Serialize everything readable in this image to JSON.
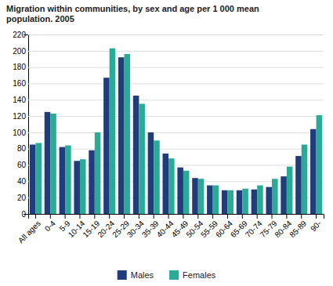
{
  "chart_data": {
    "type": "bar",
    "title": "Migration within communities, by sex and age per 1 000 mean\npopulation. 2005",
    "categories": [
      "All ages",
      "0-4",
      "5-9",
      "10-14",
      "15-19",
      "20-24",
      "25-29",
      "30-34",
      "35-39",
      "40-44",
      "45-49",
      "50-54",
      "55-59",
      "60-64",
      "65-69",
      "70-74",
      "75-79",
      "80-84",
      "85-89",
      "90-"
    ],
    "series": [
      {
        "name": "Males",
        "color": "#1f3d7a",
        "values": [
          85,
          125,
          82,
          65,
          78,
          167,
          192,
          145,
          100,
          74,
          57,
          44,
          35,
          29,
          29,
          30,
          33,
          46,
          71,
          104
        ]
      },
      {
        "name": "Females",
        "color": "#2aab96",
        "values": [
          87,
          123,
          84,
          67,
          100,
          203,
          196,
          135,
          90,
          68,
          53,
          43,
          35,
          29,
          31,
          35,
          43,
          58,
          85,
          121
        ]
      }
    ],
    "ylim": [
      0,
      220
    ],
    "yticks": [
      0,
      20,
      40,
      60,
      80,
      100,
      120,
      140,
      160,
      180,
      200,
      220
    ],
    "grid": true,
    "legend": "bottom"
  }
}
